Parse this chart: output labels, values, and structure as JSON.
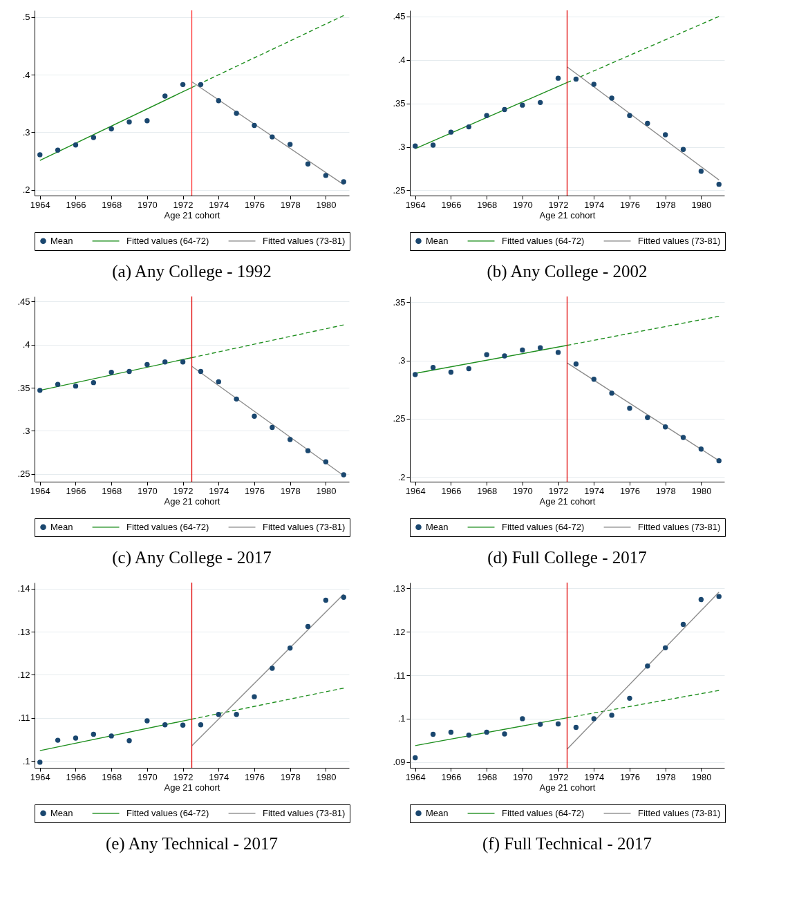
{
  "chart_data": [
    {
      "type": "scatter",
      "title": "(a) Any College - 1992",
      "xlabel": "Age 21 cohort",
      "x": [
        1964,
        1965,
        1966,
        1967,
        1968,
        1969,
        1970,
        1971,
        1972,
        1973,
        1974,
        1975,
        1976,
        1977,
        1978,
        1979,
        1980,
        1981
      ],
      "xlim": [
        1963.7,
        1981.3
      ],
      "xticks": [
        1964,
        1966,
        1968,
        1970,
        1972,
        1974,
        1976,
        1978,
        1980
      ],
      "ylim": [
        0.19,
        0.512
      ],
      "yticks": [
        {
          "value": 0.2,
          "label": ".2"
        },
        {
          "value": 0.3,
          "label": ".3"
        },
        {
          "value": 0.4,
          "label": ".4"
        },
        {
          "value": 0.5,
          "label": ".5"
        }
      ],
      "grid": "y",
      "legend": "bottom",
      "series": [
        {
          "name": "Mean",
          "marker": "circle",
          "color": "#1a476f",
          "values": [
            0.261,
            0.269,
            0.278,
            0.291,
            0.306,
            0.318,
            0.32,
            0.363,
            0.383,
            0.383,
            0.355,
            0.333,
            0.312,
            0.292,
            0.279,
            0.245,
            0.225,
            0.214
          ]
        },
        {
          "name": "Fitted values (64-72)",
          "type": "line",
          "color": "#1f8f1f",
          "x": [
            1964,
            1972.5
          ],
          "values": [
            0.251,
            0.378
          ]
        },
        {
          "type": "line",
          "color": "#1f8f1f",
          "line_style": "dashed",
          "x": [
            1972.5,
            1981
          ],
          "values": [
            0.378,
            0.503
          ]
        },
        {
          "name": "Fitted values (73-81)",
          "type": "line",
          "color": "#8c8c8c",
          "x": [
            1972.5,
            1981
          ],
          "values": [
            0.388,
            0.209
          ]
        }
      ],
      "ref_lines": [
        {
          "axis": "x",
          "value": 1972.5,
          "color": "#ff3030"
        }
      ]
    },
    {
      "type": "scatter",
      "title": "(b) Any College - 2002",
      "xlabel": "Age 21 cohort",
      "x": [
        1964,
        1965,
        1966,
        1967,
        1968,
        1969,
        1970,
        1971,
        1972,
        1973,
        1974,
        1975,
        1976,
        1977,
        1978,
        1979,
        1980,
        1981
      ],
      "xlim": [
        1963.7,
        1981.3
      ],
      "xticks": [
        1964,
        1966,
        1968,
        1970,
        1972,
        1974,
        1976,
        1978,
        1980
      ],
      "ylim": [
        0.244,
        0.457
      ],
      "yticks": [
        {
          "value": 0.25,
          "label": ".25"
        },
        {
          "value": 0.3,
          "label": ".3"
        },
        {
          "value": 0.35,
          "label": ".35"
        },
        {
          "value": 0.4,
          "label": ".4"
        },
        {
          "value": 0.45,
          "label": ".45"
        }
      ],
      "grid": "y",
      "legend": "bottom",
      "series": [
        {
          "name": "Mean",
          "marker": "circle",
          "color": "#1a476f",
          "values": [
            0.301,
            0.302,
            0.317,
            0.323,
            0.336,
            0.343,
            0.348,
            0.351,
            0.379,
            0.378,
            0.372,
            0.356,
            0.336,
            0.327,
            0.314,
            0.297,
            0.272,
            0.257
          ]
        },
        {
          "name": "Fitted values (64-72)",
          "type": "line",
          "color": "#1f8f1f",
          "x": [
            1964,
            1972.5
          ],
          "values": [
            0.298,
            0.374
          ]
        },
        {
          "type": "line",
          "color": "#1f8f1f",
          "line_style": "dashed",
          "x": [
            1972.5,
            1981
          ],
          "values": [
            0.374,
            0.45
          ]
        },
        {
          "name": "Fitted values (73-81)",
          "type": "line",
          "color": "#8c8c8c",
          "x": [
            1972.5,
            1981
          ],
          "values": [
            0.392,
            0.262
          ]
        }
      ],
      "ref_lines": [
        {
          "axis": "x",
          "value": 1972.5,
          "color": "#e00000"
        }
      ]
    },
    {
      "type": "scatter",
      "title": "(c) Any College - 2017",
      "xlabel": "Age 21 cohort",
      "x": [
        1964,
        1965,
        1966,
        1967,
        1968,
        1969,
        1970,
        1971,
        1972,
        1973,
        1974,
        1975,
        1976,
        1977,
        1978,
        1979,
        1980,
        1981
      ],
      "xlim": [
        1963.7,
        1981.3
      ],
      "xticks": [
        1964,
        1966,
        1968,
        1970,
        1972,
        1974,
        1976,
        1978,
        1980
      ],
      "ylim": [
        0.241,
        0.456
      ],
      "yticks": [
        {
          "value": 0.25,
          "label": ".25"
        },
        {
          "value": 0.3,
          "label": ".3"
        },
        {
          "value": 0.35,
          "label": ".35"
        },
        {
          "value": 0.4,
          "label": ".4"
        },
        {
          "value": 0.45,
          "label": ".45"
        }
      ],
      "grid": "y",
      "legend": "bottom",
      "series": [
        {
          "name": "Mean",
          "marker": "circle",
          "color": "#1a476f",
          "values": [
            0.347,
            0.354,
            0.352,
            0.356,
            0.368,
            0.369,
            0.377,
            0.38,
            0.38,
            0.369,
            0.357,
            0.337,
            0.317,
            0.304,
            0.29,
            0.277,
            0.264,
            0.249
          ]
        },
        {
          "name": "Fitted values (64-72)",
          "type": "line",
          "color": "#1f8f1f",
          "x": [
            1964,
            1972.5
          ],
          "values": [
            0.347,
            0.385
          ]
        },
        {
          "type": "line",
          "color": "#1f8f1f",
          "line_style": "dashed",
          "x": [
            1972.5,
            1981
          ],
          "values": [
            0.385,
            0.423
          ]
        },
        {
          "name": "Fitted values (73-81)",
          "type": "line",
          "color": "#8c8c8c",
          "x": [
            1972.5,
            1981
          ],
          "values": [
            0.375,
            0.248
          ]
        }
      ],
      "ref_lines": [
        {
          "axis": "x",
          "value": 1972.5,
          "color": "#e00000"
        }
      ]
    },
    {
      "type": "scatter",
      "title": "(d) Full College - 2017",
      "xlabel": "Age 21 cohort",
      "x": [
        1964,
        1965,
        1966,
        1967,
        1968,
        1969,
        1970,
        1971,
        1972,
        1973,
        1974,
        1975,
        1976,
        1977,
        1978,
        1979,
        1980,
        1981
      ],
      "xlim": [
        1963.7,
        1981.3
      ],
      "xticks": [
        1964,
        1966,
        1968,
        1970,
        1972,
        1974,
        1976,
        1978,
        1980
      ],
      "ylim": [
        0.196,
        0.355
      ],
      "yticks": [
        {
          "value": 0.2,
          "label": ".2"
        },
        {
          "value": 0.25,
          "label": ".25"
        },
        {
          "value": 0.3,
          "label": ".3"
        },
        {
          "value": 0.35,
          "label": ".35"
        }
      ],
      "grid": "y",
      "legend": "bottom",
      "series": [
        {
          "name": "Mean",
          "marker": "circle",
          "color": "#1a476f",
          "values": [
            0.288,
            0.294,
            0.29,
            0.293,
            0.305,
            0.304,
            0.309,
            0.311,
            0.307,
            0.297,
            0.284,
            0.272,
            0.259,
            0.251,
            0.243,
            0.234,
            0.224,
            0.214
          ]
        },
        {
          "name": "Fitted values (64-72)",
          "type": "line",
          "color": "#1f8f1f",
          "x": [
            1964,
            1972.5
          ],
          "values": [
            0.289,
            0.313
          ]
        },
        {
          "type": "line",
          "color": "#1f8f1f",
          "line_style": "dashed",
          "x": [
            1972.5,
            1981
          ],
          "values": [
            0.313,
            0.338
          ]
        },
        {
          "name": "Fitted values (73-81)",
          "type": "line",
          "color": "#8c8c8c",
          "x": [
            1972.5,
            1981
          ],
          "values": [
            0.298,
            0.214
          ]
        }
      ],
      "ref_lines": [
        {
          "axis": "x",
          "value": 1972.5,
          "color": "#e00000"
        }
      ]
    },
    {
      "type": "scatter",
      "title": "(e) Any Technical - 2017",
      "xlabel": "Age 21 cohort",
      "x": [
        1964,
        1965,
        1966,
        1967,
        1968,
        1969,
        1970,
        1971,
        1972,
        1973,
        1974,
        1975,
        1976,
        1977,
        1978,
        1979,
        1980,
        1981
      ],
      "xlim": [
        1963.7,
        1981.3
      ],
      "xticks": [
        1964,
        1966,
        1968,
        1970,
        1972,
        1974,
        1976,
        1978,
        1980
      ],
      "ylim": [
        0.0984,
        0.1414
      ],
      "yticks": [
        {
          "value": 0.1,
          "label": ".1"
        },
        {
          "value": 0.11,
          "label": ".11"
        },
        {
          "value": 0.12,
          "label": ".12"
        },
        {
          "value": 0.13,
          "label": ".13"
        },
        {
          "value": 0.14,
          "label": ".14"
        }
      ],
      "grid": "y",
      "legend": "bottom",
      "series": [
        {
          "name": "Mean",
          "marker": "circle",
          "color": "#1a476f",
          "values": [
            0.0997,
            0.1048,
            0.1053,
            0.1062,
            0.1058,
            0.1047,
            0.1093,
            0.1084,
            0.1083,
            0.1084,
            0.1108,
            0.1108,
            0.1149,
            0.1215,
            0.1262,
            0.1312,
            0.1373,
            0.138
          ]
        },
        {
          "name": "Fitted values (64-72)",
          "type": "line",
          "color": "#1f8f1f",
          "x": [
            1964,
            1972.5
          ],
          "values": [
            0.1024,
            0.1097
          ]
        },
        {
          "type": "line",
          "color": "#1f8f1f",
          "line_style": "dashed",
          "x": [
            1972.5,
            1981
          ],
          "values": [
            0.1097,
            0.1169
          ]
        },
        {
          "name": "Fitted values (73-81)",
          "type": "line",
          "color": "#8c8c8c",
          "x": [
            1972.5,
            1981
          ],
          "values": [
            0.1035,
            0.1387
          ]
        }
      ],
      "ref_lines": [
        {
          "axis": "x",
          "value": 1972.5,
          "color": "#e00000"
        }
      ]
    },
    {
      "type": "scatter",
      "title": "(f) Full Technical - 2017",
      "xlabel": "Age 21 cohort",
      "x": [
        1964,
        1965,
        1966,
        1967,
        1968,
        1969,
        1970,
        1971,
        1972,
        1973,
        1974,
        1975,
        1976,
        1977,
        1978,
        1979,
        1980,
        1981
      ],
      "xlim": [
        1963.7,
        1981.3
      ],
      "xticks": [
        1964,
        1966,
        1968,
        1970,
        1972,
        1974,
        1976,
        1978,
        1980
      ],
      "ylim": [
        0.0887,
        0.1313
      ],
      "yticks": [
        {
          "value": 0.09,
          "label": ".09"
        },
        {
          "value": 0.1,
          "label": ".1"
        },
        {
          "value": 0.11,
          "label": ".11"
        },
        {
          "value": 0.12,
          "label": ".12"
        },
        {
          "value": 0.13,
          "label": ".13"
        }
      ],
      "grid": "y",
      "legend": "bottom",
      "series": [
        {
          "name": "Mean",
          "marker": "circle",
          "color": "#1a476f",
          "values": [
            0.091,
            0.0964,
            0.0969,
            0.0962,
            0.0969,
            0.0965,
            0.1,
            0.0987,
            0.0988,
            0.098,
            0.1,
            0.1008,
            0.1047,
            0.1121,
            0.1163,
            0.1217,
            0.1274,
            0.1281
          ]
        },
        {
          "name": "Fitted values (64-72)",
          "type": "line",
          "color": "#1f8f1f",
          "x": [
            1964,
            1972.5
          ],
          "values": [
            0.0938,
            0.1002
          ]
        },
        {
          "type": "line",
          "color": "#1f8f1f",
          "line_style": "dashed",
          "x": [
            1972.5,
            1981
          ],
          "values": [
            0.1002,
            0.1065
          ]
        },
        {
          "name": "Fitted values (73-81)",
          "type": "line",
          "color": "#8c8c8c",
          "x": [
            1972.5,
            1981
          ],
          "values": [
            0.093,
            0.1291
          ]
        }
      ],
      "ref_lines": [
        {
          "axis": "x",
          "value": 1972.5,
          "color": "#e00000"
        }
      ]
    }
  ]
}
